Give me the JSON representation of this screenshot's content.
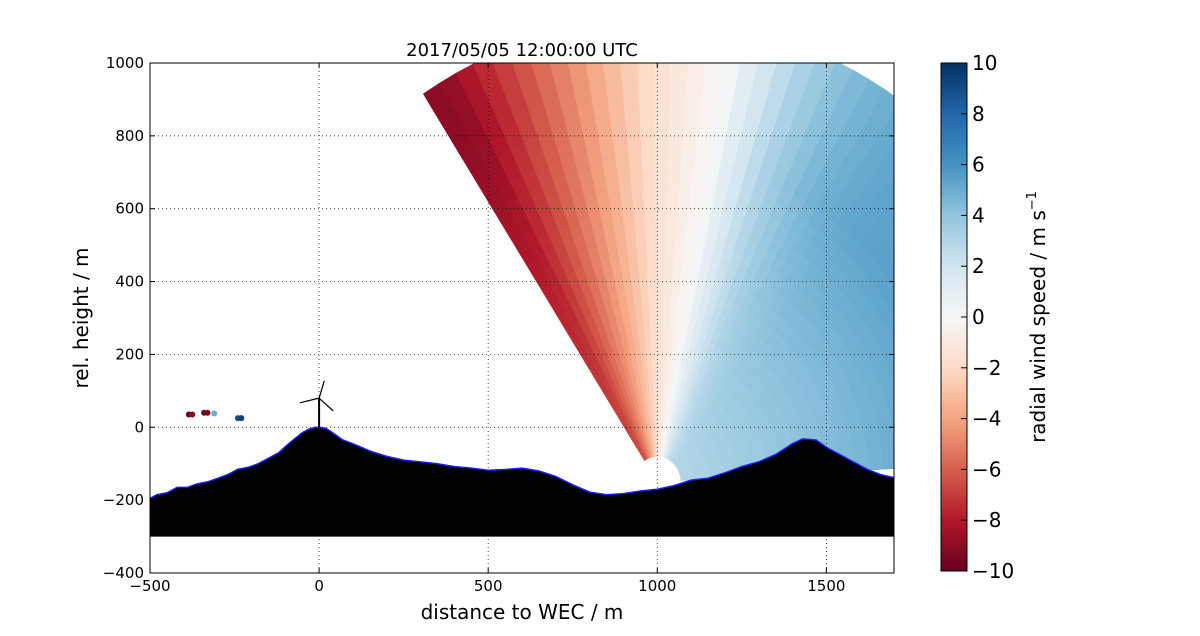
{
  "chart_data": {
    "type": "heatmap",
    "title": "2017/05/05 12:00:00 UTC",
    "xlabel": "distance to WEC / m",
    "ylabel": "rel. height / m",
    "xlim": [
      -500,
      1700
    ],
    "ylim": [
      -400,
      1000
    ],
    "xticks": [
      -500,
      0,
      500,
      1000,
      1500
    ],
    "yticks": [
      -400,
      -200,
      0,
      200,
      400,
      600,
      800,
      1000
    ],
    "grid": true,
    "colorbar": {
      "label": "radial wind speed / m s",
      "label_superscript": "−1",
      "range": [
        -10,
        10
      ],
      "ticks": [
        -10,
        -8,
        -6,
        -4,
        -2,
        0,
        2,
        4,
        6,
        8,
        10
      ],
      "colormap": "RdBu"
    },
    "scan": {
      "origin": [
        1000,
        -150
      ],
      "radius_min": 70,
      "radius_max": 1270,
      "elevation_range_deg": [
        3,
        123
      ]
    },
    "turbine": {
      "x": 0,
      "hub_height": 80
    },
    "terrain": {
      "x": [
        -500,
        -480,
        -450,
        -420,
        -390,
        -360,
        -330,
        -300,
        -270,
        -240,
        -210,
        -180,
        -150,
        -120,
        -90,
        -70,
        -50,
        -30,
        -10,
        0,
        20,
        40,
        70,
        100,
        150,
        200,
        250,
        300,
        350,
        400,
        450,
        500,
        550,
        600,
        650,
        700,
        750,
        800,
        850,
        900,
        950,
        1000,
        1050,
        1100,
        1150,
        1200,
        1250,
        1300,
        1350,
        1400,
        1430,
        1470,
        1500,
        1540,
        1580,
        1620,
        1660,
        1700
      ],
      "y": [
        -195,
        -185,
        -180,
        -165,
        -165,
        -155,
        -150,
        -140,
        -130,
        -115,
        -110,
        -100,
        -85,
        -70,
        -45,
        -30,
        -15,
        -5,
        0,
        0,
        -3,
        -15,
        -35,
        -45,
        -65,
        -80,
        -90,
        -95,
        -100,
        -108,
        -112,
        -118,
        -116,
        -112,
        -120,
        -135,
        -158,
        -178,
        -185,
        -182,
        -175,
        -170,
        -160,
        -145,
        -140,
        -125,
        -108,
        -95,
        -75,
        -45,
        -32,
        -35,
        -55,
        -75,
        -95,
        -115,
        -130,
        -138
      ],
      "base": -300
    },
    "scatter_points": [
      {
        "x": -385,
        "y": 35,
        "value": -10
      },
      {
        "x": -375,
        "y": 35,
        "value": -9
      },
      {
        "x": -340,
        "y": 40,
        "value": -10
      },
      {
        "x": -330,
        "y": 40,
        "value": -9.5
      },
      {
        "x": -310,
        "y": 38,
        "value": 5
      },
      {
        "x": -240,
        "y": 25,
        "value": 9
      },
      {
        "x": -230,
        "y": 25,
        "value": 9.5
      }
    ]
  }
}
